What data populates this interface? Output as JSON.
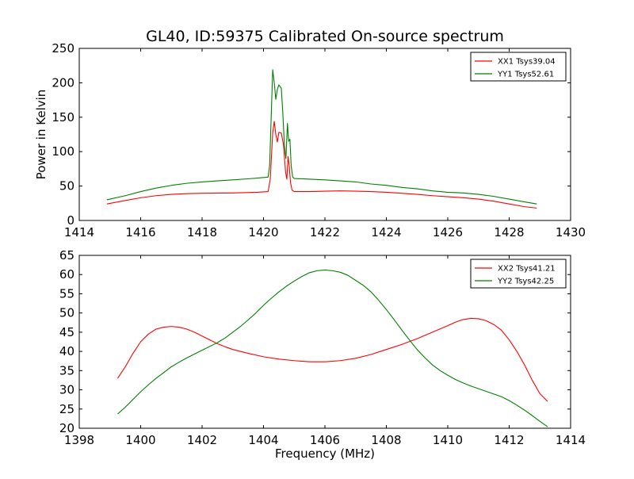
{
  "figure": {
    "title": "GL40, ID:59375 Calibrated On-source spectrum"
  },
  "chart_data": [
    {
      "type": "line",
      "title": "GL40, ID:59375 Calibrated On-source spectrum",
      "xlabel": "",
      "ylabel": "Power in Kelvin",
      "xlim": [
        1414,
        1430
      ],
      "ylim": [
        0,
        250
      ],
      "xticks": [
        1414,
        1416,
        1418,
        1420,
        1422,
        1424,
        1426,
        1428,
        1430
      ],
      "yticks": [
        0,
        50,
        100,
        150,
        200,
        250
      ],
      "legend_position": "top-right",
      "grid": false,
      "series": [
        {
          "name": "XX1 Tsys39.04",
          "color": "#ff0000",
          "points": [
            [
              1414.9,
              24
            ],
            [
              1415.5,
              29
            ],
            [
              1416.0,
              33
            ],
            [
              1416.5,
              36
            ],
            [
              1417.0,
              38
            ],
            [
              1417.5,
              39
            ],
            [
              1418.0,
              39.5
            ],
            [
              1419.0,
              40
            ],
            [
              1419.8,
              41
            ],
            [
              1420.15,
              42
            ],
            [
              1420.22,
              60
            ],
            [
              1420.3,
              128
            ],
            [
              1420.35,
              144
            ],
            [
              1420.4,
              125
            ],
            [
              1420.45,
              114
            ],
            [
              1420.5,
              128
            ],
            [
              1420.58,
              127
            ],
            [
              1420.65,
              110
            ],
            [
              1420.72,
              70
            ],
            [
              1420.76,
              60
            ],
            [
              1420.8,
              93
            ],
            [
              1420.84,
              78
            ],
            [
              1420.88,
              55
            ],
            [
              1420.93,
              44
            ],
            [
              1421.0,
              42
            ],
            [
              1421.5,
              42
            ],
            [
              1422.0,
              42.5
            ],
            [
              1422.5,
              43
            ],
            [
              1423.0,
              42.5
            ],
            [
              1423.5,
              42
            ],
            [
              1424.0,
              41
            ],
            [
              1424.5,
              39.5
            ],
            [
              1425.0,
              38
            ],
            [
              1425.5,
              36
            ],
            [
              1426.0,
              34.5
            ],
            [
              1426.5,
              33
            ],
            [
              1427.0,
              31
            ],
            [
              1427.5,
              28
            ],
            [
              1428.0,
              24
            ],
            [
              1428.5,
              20
            ],
            [
              1428.9,
              18
            ]
          ]
        },
        {
          "name": "YY1 Tsys52.61",
          "color": "#008000",
          "points": [
            [
              1414.9,
              30
            ],
            [
              1415.5,
              36
            ],
            [
              1416.0,
              42
            ],
            [
              1416.5,
              47
            ],
            [
              1417.0,
              51
            ],
            [
              1417.5,
              54
            ],
            [
              1418.0,
              56
            ],
            [
              1418.5,
              57.5
            ],
            [
              1419.0,
              59
            ],
            [
              1419.5,
              60.5
            ],
            [
              1419.9,
              62
            ],
            [
              1420.15,
              63
            ],
            [
              1420.2,
              80
            ],
            [
              1420.25,
              150
            ],
            [
              1420.3,
              219
            ],
            [
              1420.35,
              200
            ],
            [
              1420.4,
              176
            ],
            [
              1420.45,
              190
            ],
            [
              1420.5,
              197
            ],
            [
              1420.58,
              192
            ],
            [
              1420.63,
              155
            ],
            [
              1420.68,
              110
            ],
            [
              1420.73,
              90
            ],
            [
              1420.78,
              141
            ],
            [
              1420.82,
              115
            ],
            [
              1420.86,
              118
            ],
            [
              1420.9,
              80
            ],
            [
              1420.95,
              63
            ],
            [
              1421.0,
              61
            ],
            [
              1421.5,
              60
            ],
            [
              1422.0,
              59
            ],
            [
              1422.5,
              57.5
            ],
            [
              1423.0,
              56
            ],
            [
              1423.5,
              53
            ],
            [
              1424.0,
              51
            ],
            [
              1424.5,
              48
            ],
            [
              1425.0,
              46
            ],
            [
              1425.5,
              43
            ],
            [
              1426.0,
              41
            ],
            [
              1426.5,
              40
            ],
            [
              1427.0,
              38
            ],
            [
              1427.5,
              35
            ],
            [
              1428.0,
              31
            ],
            [
              1428.5,
              27
            ],
            [
              1428.9,
              24
            ]
          ]
        }
      ]
    },
    {
      "type": "line",
      "title": "",
      "xlabel": "Frequency (MHz)",
      "ylabel": "",
      "xlim": [
        1398,
        1414
      ],
      "ylim": [
        20,
        65
      ],
      "xticks": [
        1398,
        1400,
        1402,
        1404,
        1406,
        1408,
        1410,
        1412,
        1414
      ],
      "yticks": [
        20,
        25,
        30,
        35,
        40,
        45,
        50,
        55,
        60,
        65
      ],
      "legend_position": "top-right",
      "grid": false,
      "series": [
        {
          "name": "XX2 Tsys41.21",
          "color": "#ff0000",
          "points": [
            [
              1399.25,
              33
            ],
            [
              1399.5,
              36
            ],
            [
              1399.75,
              39.5
            ],
            [
              1400.0,
              42.5
            ],
            [
              1400.25,
              44.5
            ],
            [
              1400.5,
              45.8
            ],
            [
              1400.75,
              46.3
            ],
            [
              1401.0,
              46.5
            ],
            [
              1401.25,
              46.3
            ],
            [
              1401.5,
              45.8
            ],
            [
              1401.75,
              45.0
            ],
            [
              1402.0,
              44.0
            ],
            [
              1402.25,
              43.0
            ],
            [
              1402.5,
              42.0
            ],
            [
              1402.75,
              41.2
            ],
            [
              1403.0,
              40.5
            ],
            [
              1403.5,
              39.5
            ],
            [
              1404.0,
              38.6
            ],
            [
              1404.5,
              38.0
            ],
            [
              1405.0,
              37.6
            ],
            [
              1405.5,
              37.3
            ],
            [
              1406.0,
              37.3
            ],
            [
              1406.5,
              37.6
            ],
            [
              1407.0,
              38.2
            ],
            [
              1407.5,
              39.2
            ],
            [
              1408.0,
              40.5
            ],
            [
              1408.5,
              41.8
            ],
            [
              1409.0,
              43.3
            ],
            [
              1409.5,
              45.0
            ],
            [
              1410.0,
              46.7
            ],
            [
              1410.25,
              47.6
            ],
            [
              1410.5,
              48.3
            ],
            [
              1410.75,
              48.6
            ],
            [
              1411.0,
              48.5
            ],
            [
              1411.25,
              48.0
            ],
            [
              1411.5,
              47.0
            ],
            [
              1411.75,
              45.5
            ],
            [
              1412.0,
              43.0
            ],
            [
              1412.25,
              40.0
            ],
            [
              1412.5,
              36.5
            ],
            [
              1412.75,
              32.5
            ],
            [
              1413.0,
              29.0
            ],
            [
              1413.25,
              27.0
            ]
          ]
        },
        {
          "name": "YY2 Tsys42.25",
          "color": "#008000",
          "points": [
            [
              1399.25,
              23.7
            ],
            [
              1399.5,
              25.5
            ],
            [
              1399.75,
              27.5
            ],
            [
              1400.0,
              29.5
            ],
            [
              1400.25,
              31.3
            ],
            [
              1400.5,
              33.0
            ],
            [
              1400.75,
              34.5
            ],
            [
              1401.0,
              36.0
            ],
            [
              1401.25,
              37.2
            ],
            [
              1401.5,
              38.3
            ],
            [
              1401.75,
              39.3
            ],
            [
              1402.0,
              40.3
            ],
            [
              1402.25,
              41.3
            ],
            [
              1402.5,
              42.3
            ],
            [
              1402.75,
              43.5
            ],
            [
              1403.0,
              45.0
            ],
            [
              1403.25,
              46.5
            ],
            [
              1403.5,
              48.2
            ],
            [
              1403.75,
              50.0
            ],
            [
              1404.0,
              52.0
            ],
            [
              1404.25,
              53.8
            ],
            [
              1404.5,
              55.5
            ],
            [
              1404.75,
              57.0
            ],
            [
              1405.0,
              58.3
            ],
            [
              1405.25,
              59.5
            ],
            [
              1405.5,
              60.5
            ],
            [
              1405.75,
              61.0
            ],
            [
              1406.0,
              61.2
            ],
            [
              1406.25,
              61.0
            ],
            [
              1406.5,
              60.6
            ],
            [
              1406.75,
              59.8
            ],
            [
              1407.0,
              58.5
            ],
            [
              1407.25,
              57.2
            ],
            [
              1407.5,
              55.5
            ],
            [
              1407.75,
              53.3
            ],
            [
              1408.0,
              50.9
            ],
            [
              1408.25,
              48.3
            ],
            [
              1408.5,
              45.6
            ],
            [
              1408.75,
              43.0
            ],
            [
              1409.0,
              40.5
            ],
            [
              1409.25,
              38.4
            ],
            [
              1409.5,
              36.5
            ],
            [
              1409.75,
              35.0
            ],
            [
              1410.0,
              33.8
            ],
            [
              1410.25,
              32.7
            ],
            [
              1410.5,
              31.8
            ],
            [
              1410.75,
              31.0
            ],
            [
              1411.0,
              30.3
            ],
            [
              1411.25,
              29.6
            ],
            [
              1411.5,
              28.9
            ],
            [
              1411.75,
              28.2
            ],
            [
              1412.0,
              27.2
            ],
            [
              1412.25,
              26.0
            ],
            [
              1412.5,
              24.7
            ],
            [
              1412.75,
              23.3
            ],
            [
              1413.0,
              21.8
            ],
            [
              1413.25,
              20.4
            ]
          ]
        }
      ]
    }
  ]
}
